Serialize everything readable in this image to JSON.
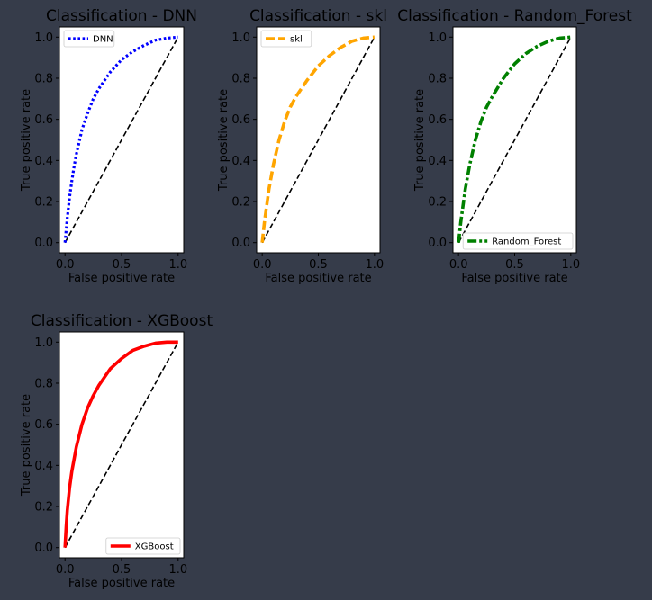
{
  "colors": {
    "background": "#363c4a",
    "plot_bg": "#ffffff",
    "diagonal": "#000000",
    "text": "#000000"
  },
  "chart_data": [
    {
      "type": "line",
      "title": "Classification - DNN",
      "xlabel": "False positive rate",
      "ylabel": "True positive rate",
      "xlim": [
        0,
        1
      ],
      "ylim": [
        0,
        1
      ],
      "xticks": [
        "0.0",
        "0.5",
        "1.0"
      ],
      "yticks": [
        "0.0",
        "0.2",
        "0.4",
        "0.6",
        "0.8",
        "1.0"
      ],
      "grid": false,
      "legend_position": "upper left",
      "diagonal": [
        [
          0,
          0
        ],
        [
          1,
          1
        ]
      ],
      "series": [
        {
          "name": "DNN",
          "color": "#0000ff",
          "line_style": "dotted",
          "x": [
            0.0,
            0.02,
            0.04,
            0.06,
            0.08,
            0.1,
            0.15,
            0.2,
            0.25,
            0.3,
            0.4,
            0.5,
            0.6,
            0.7,
            0.8,
            0.9,
            1.0
          ],
          "y": [
            0.0,
            0.12,
            0.22,
            0.3,
            0.37,
            0.43,
            0.55,
            0.63,
            0.7,
            0.75,
            0.83,
            0.89,
            0.93,
            0.96,
            0.985,
            0.995,
            1.0
          ]
        }
      ]
    },
    {
      "type": "line",
      "title": "Classification - skl",
      "xlabel": "False positive rate",
      "ylabel": "True positive rate",
      "xlim": [
        0,
        1
      ],
      "ylim": [
        0,
        1
      ],
      "xticks": [
        "0.0",
        "0.5",
        "1.0"
      ],
      "yticks": [
        "0.0",
        "0.2",
        "0.4",
        "0.6",
        "0.8",
        "1.0"
      ],
      "grid": false,
      "legend_position": "upper left",
      "diagonal": [
        [
          0,
          0
        ],
        [
          1,
          1
        ]
      ],
      "series": [
        {
          "name": "skl",
          "color": "#ffa500",
          "line_style": "dashed",
          "x": [
            0.0,
            0.02,
            0.04,
            0.06,
            0.08,
            0.1,
            0.15,
            0.2,
            0.25,
            0.3,
            0.4,
            0.5,
            0.6,
            0.7,
            0.8,
            0.9,
            1.0
          ],
          "y": [
            0.0,
            0.1,
            0.18,
            0.26,
            0.32,
            0.38,
            0.5,
            0.59,
            0.66,
            0.71,
            0.79,
            0.86,
            0.91,
            0.95,
            0.98,
            0.995,
            1.0
          ]
        }
      ]
    },
    {
      "type": "line",
      "title": "Classification - Random_Forest",
      "xlabel": "False positive rate",
      "ylabel": "True positive rate",
      "xlim": [
        0,
        1
      ],
      "ylim": [
        0,
        1
      ],
      "xticks": [
        "0.0",
        "0.5",
        "1.0"
      ],
      "yticks": [
        "0.0",
        "0.2",
        "0.4",
        "0.6",
        "0.8",
        "1.0"
      ],
      "grid": false,
      "legend_position": "lower right",
      "diagonal": [
        [
          0,
          0
        ],
        [
          1,
          1
        ]
      ],
      "series": [
        {
          "name": "Random_Forest",
          "color": "#008000",
          "line_style": "dashdot",
          "x": [
            0.0,
            0.02,
            0.04,
            0.06,
            0.08,
            0.1,
            0.15,
            0.2,
            0.25,
            0.3,
            0.4,
            0.5,
            0.6,
            0.7,
            0.8,
            0.9,
            1.0
          ],
          "y": [
            0.0,
            0.1,
            0.18,
            0.26,
            0.32,
            0.38,
            0.5,
            0.59,
            0.66,
            0.71,
            0.8,
            0.87,
            0.92,
            0.955,
            0.98,
            0.995,
            1.0
          ]
        }
      ]
    },
    {
      "type": "line",
      "title": "Classification - XGBoost",
      "xlabel": "False positive rate",
      "ylabel": "True positive rate",
      "xlim": [
        0,
        1
      ],
      "ylim": [
        0,
        1
      ],
      "xticks": [
        "0.0",
        "0.5",
        "1.0"
      ],
      "yticks": [
        "0.0",
        "0.2",
        "0.4",
        "0.6",
        "0.8",
        "1.0"
      ],
      "grid": false,
      "legend_position": "lower right",
      "diagonal": [
        [
          0,
          0
        ],
        [
          1,
          1
        ]
      ],
      "series": [
        {
          "name": "XGBoost",
          "color": "#ff0000",
          "line_style": "solid",
          "x": [
            0.0,
            0.01,
            0.02,
            0.04,
            0.06,
            0.08,
            0.1,
            0.15,
            0.2,
            0.25,
            0.3,
            0.4,
            0.5,
            0.6,
            0.7,
            0.8,
            0.9,
            1.0
          ],
          "y": [
            0.0,
            0.1,
            0.18,
            0.29,
            0.37,
            0.43,
            0.49,
            0.6,
            0.68,
            0.74,
            0.79,
            0.87,
            0.92,
            0.96,
            0.98,
            0.995,
            1.0,
            1.0
          ]
        }
      ]
    }
  ]
}
